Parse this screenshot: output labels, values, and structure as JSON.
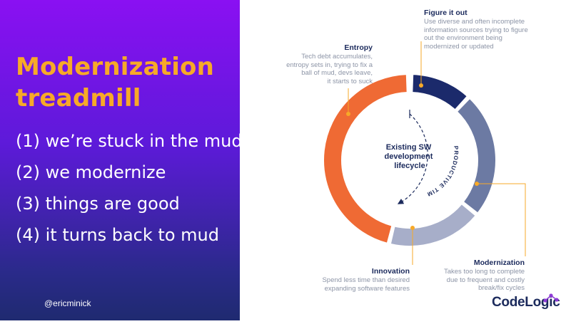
{
  "slide": {
    "title": "Modernization treadmill",
    "points": [
      "(1) we’re stuck in the mud",
      "(2) we modernize",
      "(3) things are good",
      "(4) it turns back to mud"
    ],
    "handle": "@ericminick"
  },
  "diagram": {
    "center_lines": [
      "Existing SW",
      "development",
      "lifecycle"
    ],
    "arc_label": "PRODUCTIVE TIME",
    "stages": [
      {
        "key": "figure",
        "name": "Figure it out",
        "description_lines": [
          "Use diverse and often incomplete",
          "information sources trying to figure",
          "out the environment being",
          "modernized or updated"
        ],
        "color": "#1b2a6b"
      },
      {
        "key": "modernization",
        "name": "Modernization",
        "description_lines": [
          "Takes too long to complete",
          "due to frequent and costly",
          "break/fix cycles"
        ],
        "color": "#6c7aa3"
      },
      {
        "key": "innovation",
        "name": "Innovation",
        "description_lines": [
          "Spend less time than desired",
          "expanding software features"
        ],
        "color": "#a7aec9"
      },
      {
        "key": "entropy",
        "name": "Entropy",
        "description_lines": [
          "Tech debt accumulates,",
          "entropy sets in, trying to fix a",
          "ball of mud, devs leave,",
          "it starts to suck"
        ],
        "color": "#ef6a34"
      }
    ],
    "connector_color": "#f7a928"
  },
  "brand": {
    "logo_text": "CodeLogic",
    "title_color": "#f7a928",
    "navy": "#1b2a5c"
  }
}
